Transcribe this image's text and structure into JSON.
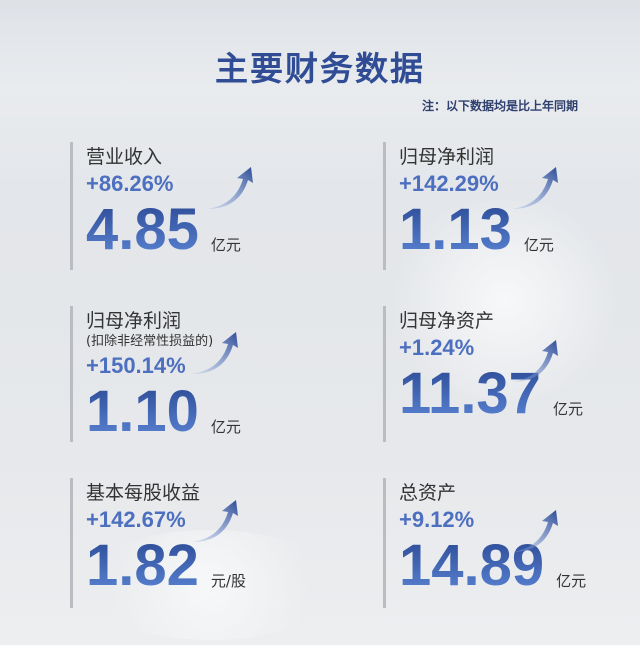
{
  "title": "主要财务数据",
  "note": "注：以下数据均是比上年同期",
  "colors": {
    "accent": "#2f4c94",
    "percent": "#4d6fc0"
  },
  "cards": [
    {
      "label": "营业收入",
      "sub": "",
      "change": "+86.26%",
      "value": "4.85",
      "unit": "亿元"
    },
    {
      "label": "归母净利润",
      "sub": "",
      "change": "+142.29%",
      "value": "1.13",
      "unit": "亿元"
    },
    {
      "label": "归母净利润",
      "sub": "(扣除非经常性损益的)",
      "change": "+150.14%",
      "value": "1.10",
      "unit": "亿元"
    },
    {
      "label": "归母净资产",
      "sub": "",
      "change": "+1.24%",
      "value": "11.37",
      "unit": "亿元"
    },
    {
      "label": "基本每股收益",
      "sub": "",
      "change": "+142.67%",
      "value": "1.82",
      "unit": "元/股"
    },
    {
      "label": "总资产",
      "sub": "",
      "change": "+9.12%",
      "value": "14.89",
      "unit": "亿元"
    }
  ]
}
